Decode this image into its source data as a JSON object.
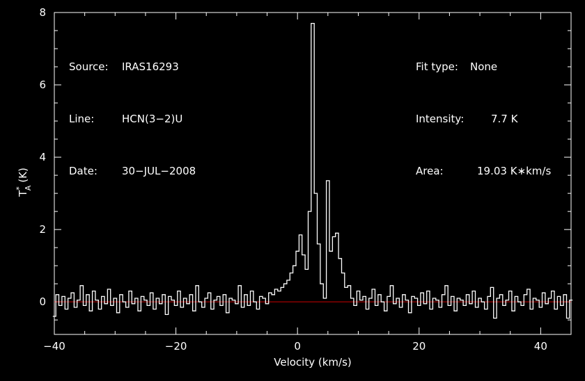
{
  "header": {
    "source_label": "Source:",
    "source_value": "IRAS16293",
    "line_label": "Line:",
    "line_value": "HCN(3−2)U",
    "date_label": "Date:",
    "date_value": "30−JUL−2008",
    "fit_label": "Fit type:",
    "fit_value": "None",
    "intensity_label": "Intensity:",
    "intensity_value": "7.7 K",
    "area_label": "Area:",
    "area_value": "19.03 K∗km/s"
  },
  "chart_data": {
    "type": "line",
    "xlabel": "Velocity (km/s)",
    "ylabel": "T",
    "ylabel_sup": "*",
    "ylabel_sub": "A",
    "ylabel_unit": "(K)",
    "xlim": [
      -40,
      45
    ],
    "ylim": [
      -0.9,
      8.0
    ],
    "x_ticks": [
      -40,
      -20,
      0,
      20,
      40
    ],
    "x_tick_labels": [
      "−40",
      "−20",
      "0",
      "20",
      "40"
    ],
    "y_ticks": [
      0,
      2,
      4,
      6,
      8
    ],
    "y_tick_labels": [
      "0",
      "2",
      "4",
      "6",
      "8"
    ],
    "baseline": 0,
    "colors": {
      "spectrum": "#ffffff",
      "baseline": "#cc0000",
      "axes": "#ffffff"
    },
    "series": [
      {
        "x": [
          -40,
          -39.5,
          -39,
          -38.5,
          -38,
          -37.5,
          -37,
          -36.5,
          -36,
          -35.5,
          -35,
          -34.5,
          -34,
          -33.5,
          -33,
          -32.5,
          -32,
          -31.5,
          -31,
          -30.5,
          -30,
          -29.5,
          -29,
          -28.5,
          -28,
          -27.5,
          -27,
          -26.5,
          -26,
          -25.5,
          -25,
          -24.5,
          -24,
          -23.5,
          -23,
          -22.5,
          -22,
          -21.5,
          -21,
          -20.5,
          -20,
          -19.5,
          -19,
          -18.5,
          -18,
          -17.5,
          -17,
          -16.5,
          -16,
          -15.5,
          -15,
          -14.5,
          -14,
          -13.5,
          -13,
          -12.5,
          -12,
          -11.5,
          -11,
          -10.5,
          -10,
          -9.5,
          -9,
          -8.5,
          -8,
          -7.5,
          -7,
          -6.5,
          -6,
          -5.5,
          -5,
          -4.5,
          -4,
          -3.5,
          -3,
          -2.5,
          -2,
          -1.5,
          -1,
          -0.5,
          0,
          0.5,
          1,
          1.5,
          2,
          2.5,
          3,
          3.5,
          4,
          4.5,
          5,
          5.5,
          6,
          6.5,
          7,
          7.5,
          8,
          8.5,
          9,
          9.5,
          10,
          10.5,
          11,
          11.5,
          12,
          12.5,
          13,
          13.5,
          14,
          14.5,
          15,
          15.5,
          16,
          16.5,
          17,
          17.5,
          18,
          18.5,
          19,
          19.5,
          20,
          20.5,
          21,
          21.5,
          22,
          22.5,
          23,
          23.5,
          24,
          24.5,
          25,
          25.5,
          26,
          26.5,
          27,
          27.5,
          28,
          28.5,
          29,
          29.5,
          30,
          30.5,
          31,
          31.5,
          32,
          32.5,
          33,
          33.5,
          34,
          34.5,
          35,
          35.5,
          36,
          36.5,
          37,
          37.5,
          38,
          38.5,
          39,
          39.5,
          40,
          40.5,
          41,
          41.5,
          42,
          42.5,
          43,
          43.5,
          44,
          44.5,
          45
        ],
        "y": [
          -0.4,
          0.2,
          -0.1,
          0.15,
          -0.2,
          0.1,
          0.25,
          -0.15,
          0.05,
          0.45,
          -0.1,
          0.2,
          -0.25,
          0.3,
          0.05,
          -0.2,
          0.15,
          -0.05,
          0.35,
          -0.1,
          0.1,
          -0.3,
          0.2,
          0.0,
          -0.15,
          0.3,
          -0.05,
          0.1,
          -0.25,
          0.15,
          0.05,
          -0.1,
          0.25,
          -0.2,
          0.1,
          -0.05,
          0.2,
          -0.35,
          0.15,
          0.05,
          -0.1,
          0.3,
          -0.15,
          0.1,
          -0.05,
          0.2,
          -0.25,
          0.45,
          0.0,
          -0.15,
          0.1,
          0.25,
          -0.2,
          0.05,
          0.15,
          -0.1,
          0.2,
          -0.3,
          0.1,
          0.05,
          -0.05,
          0.45,
          -0.15,
          0.2,
          -0.1,
          0.3,
          0.0,
          -0.2,
          0.15,
          0.1,
          -0.05,
          0.25,
          0.2,
          0.35,
          0.3,
          0.4,
          0.5,
          0.6,
          0.8,
          1.0,
          1.4,
          1.85,
          1.3,
          0.9,
          2.5,
          7.7,
          3.0,
          1.6,
          0.5,
          0.1,
          3.35,
          1.4,
          1.8,
          1.9,
          1.2,
          0.8,
          0.4,
          0.45,
          0.1,
          -0.1,
          0.3,
          0.05,
          0.15,
          -0.2,
          0.1,
          0.35,
          -0.1,
          0.2,
          0.0,
          -0.25,
          0.15,
          0.45,
          -0.05,
          0.1,
          -0.15,
          0.2,
          0.05,
          -0.3,
          0.15,
          0.1,
          -0.1,
          0.25,
          -0.05,
          0.3,
          -0.2,
          0.1,
          0.05,
          -0.15,
          0.2,
          0.45,
          -0.1,
          0.15,
          -0.25,
          0.1,
          0.05,
          -0.1,
          0.2,
          -0.05,
          0.3,
          -0.15,
          0.1,
          0.0,
          -0.2,
          0.15,
          0.4,
          -0.45,
          0.1,
          0.2,
          -0.1,
          0.05,
          0.3,
          -0.25,
          0.15,
          0.0,
          -0.1,
          0.2,
          0.35,
          -0.2,
          0.1,
          0.05,
          -0.15,
          0.25,
          -0.05,
          0.1,
          0.3,
          -0.2,
          0.15,
          -0.1,
          0.2,
          -0.45,
          0.05
        ]
      }
    ]
  }
}
